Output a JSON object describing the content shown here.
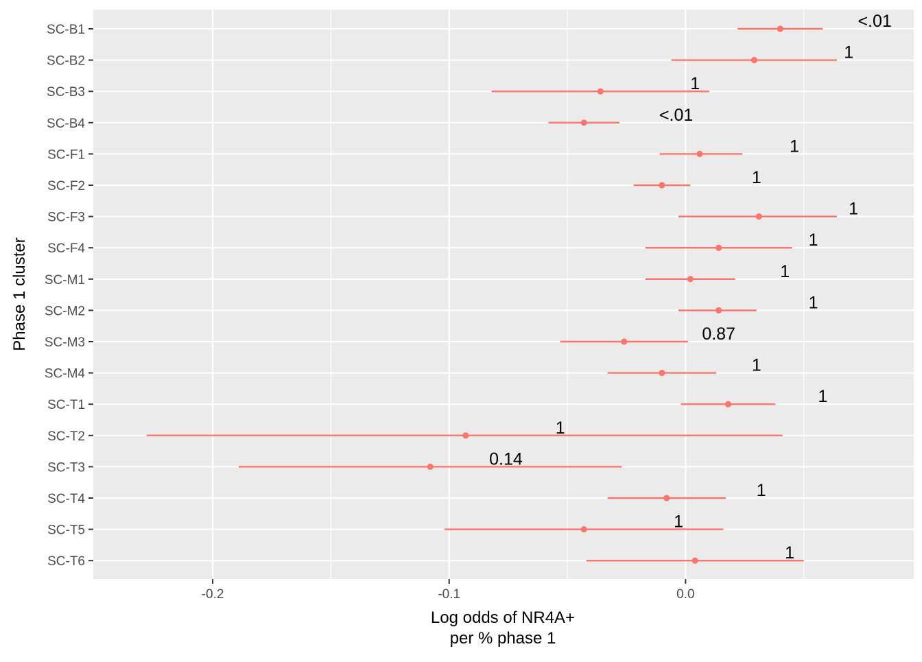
{
  "chart_data": {
    "type": "forest",
    "title": "",
    "xlabel_line1": "Log odds of NR4A+",
    "xlabel_line2": "per % phase 1",
    "ylabel": "Phase 1 cluster",
    "xlim": [
      -0.2505,
      0.0965
    ],
    "x_ticks": [
      -0.2,
      -0.1,
      0.0
    ],
    "x_tick_labels": [
      "-0.2",
      "-0.1",
      "0.0"
    ],
    "x_minor_ticks": [
      -0.15,
      -0.05,
      0.05
    ],
    "colors": {
      "series": "#F8766D",
      "panel": "#EBEBEB",
      "grid": "#FFFFFF",
      "axis_text": "#4D4D4D",
      "title_text": "#000000"
    },
    "clusters": [
      {
        "label": "SC-B1",
        "estimate": 0.04,
        "lower": 0.022,
        "upper": 0.058,
        "p_label": "<.01",
        "p_x": 0.08
      },
      {
        "label": "SC-B2",
        "estimate": 0.029,
        "lower": -0.006,
        "upper": 0.064,
        "p_label": "1",
        "p_x": 0.069
      },
      {
        "label": "SC-B3",
        "estimate": -0.036,
        "lower": -0.082,
        "upper": 0.01,
        "p_label": "1",
        "p_x": 0.004
      },
      {
        "label": "SC-B4",
        "estimate": -0.043,
        "lower": -0.058,
        "upper": -0.028,
        "p_label": "<.01",
        "p_x": -0.004
      },
      {
        "label": "SC-F1",
        "estimate": 0.006,
        "lower": -0.011,
        "upper": 0.024,
        "p_label": "1",
        "p_x": 0.046
      },
      {
        "label": "SC-F2",
        "estimate": -0.01,
        "lower": -0.022,
        "upper": 0.002,
        "p_label": "1",
        "p_x": 0.03
      },
      {
        "label": "SC-F3",
        "estimate": 0.031,
        "lower": -0.003,
        "upper": 0.064,
        "p_label": "1",
        "p_x": 0.071
      },
      {
        "label": "SC-F4",
        "estimate": 0.014,
        "lower": -0.017,
        "upper": 0.045,
        "p_label": "1",
        "p_x": 0.054
      },
      {
        "label": "SC-M1",
        "estimate": 0.002,
        "lower": -0.017,
        "upper": 0.021,
        "p_label": "1",
        "p_x": 0.042
      },
      {
        "label": "SC-M2",
        "estimate": 0.014,
        "lower": -0.003,
        "upper": 0.03,
        "p_label": "1",
        "p_x": 0.054
      },
      {
        "label": "SC-M3",
        "estimate": -0.026,
        "lower": -0.053,
        "upper": 0.001,
        "p_label": "0.87",
        "p_x": 0.014
      },
      {
        "label": "SC-M4",
        "estimate": -0.01,
        "lower": -0.033,
        "upper": 0.013,
        "p_label": "1",
        "p_x": 0.03
      },
      {
        "label": "SC-T1",
        "estimate": 0.018,
        "lower": -0.002,
        "upper": 0.038,
        "p_label": "1",
        "p_x": 0.058
      },
      {
        "label": "SC-T2",
        "estimate": -0.093,
        "lower": -0.228,
        "upper": 0.041,
        "p_label": "1",
        "p_x": -0.053
      },
      {
        "label": "SC-T3",
        "estimate": -0.108,
        "lower": -0.189,
        "upper": -0.027,
        "p_label": "0.14",
        "p_x": -0.076
      },
      {
        "label": "SC-T4",
        "estimate": -0.008,
        "lower": -0.033,
        "upper": 0.017,
        "p_label": "1",
        "p_x": 0.032
      },
      {
        "label": "SC-T5",
        "estimate": -0.043,
        "lower": -0.102,
        "upper": 0.016,
        "p_label": "1",
        "p_x": -0.003
      },
      {
        "label": "SC-T6",
        "estimate": 0.004,
        "lower": -0.042,
        "upper": 0.05,
        "p_label": "1",
        "p_x": 0.044
      }
    ]
  }
}
